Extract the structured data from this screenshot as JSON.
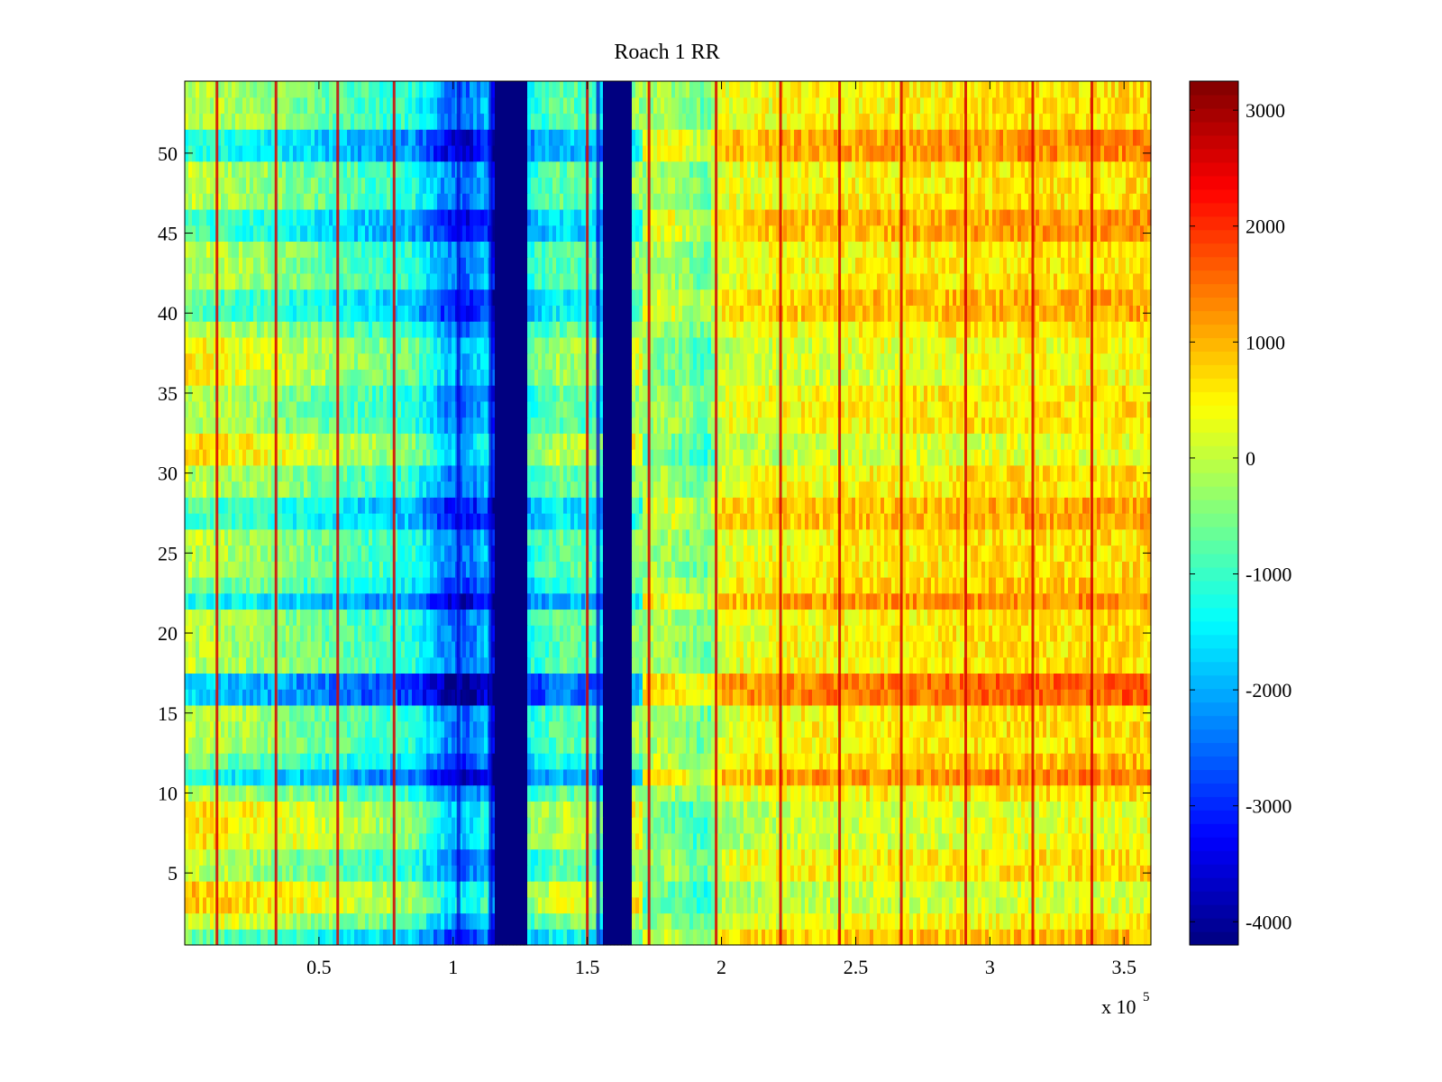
{
  "chart_data": {
    "type": "heatmap",
    "title": "Roach 1 RR",
    "xlabel": "",
    "ylabel": "",
    "x_multiplier_label": "x 10",
    "x_multiplier_exponent": "5",
    "xlim": [
      0,
      3.6
    ],
    "ylim": [
      0.5,
      54.5
    ],
    "x_ticks": [
      {
        "value": 0.5,
        "label": "0.5"
      },
      {
        "value": 1,
        "label": "1"
      },
      {
        "value": 1.5,
        "label": "1.5"
      },
      {
        "value": 2,
        "label": "2"
      },
      {
        "value": 2.5,
        "label": "2.5"
      },
      {
        "value": 3,
        "label": "3"
      },
      {
        "value": 3.5,
        "label": "3.5"
      }
    ],
    "y_ticks": [
      {
        "value": 5,
        "label": "5"
      },
      {
        "value": 10,
        "label": "10"
      },
      {
        "value": 15,
        "label": "15"
      },
      {
        "value": 20,
        "label": "20"
      },
      {
        "value": 25,
        "label": "25"
      },
      {
        "value": 30,
        "label": "30"
      },
      {
        "value": 35,
        "label": "35"
      },
      {
        "value": 40,
        "label": "40"
      },
      {
        "value": 45,
        "label": "45"
      },
      {
        "value": 50,
        "label": "50"
      }
    ],
    "colorbar": {
      "colormap": "jet",
      "range": [
        -4200,
        3250
      ],
      "ticks": [
        {
          "value": 3000,
          "label": "3000"
        },
        {
          "value": 2000,
          "label": "2000"
        },
        {
          "value": 1000,
          "label": "1000"
        },
        {
          "value": 0,
          "label": "0"
        },
        {
          "value": -1000,
          "label": "-1000"
        },
        {
          "value": -2000,
          "label": "-2000"
        },
        {
          "value": -3000,
          "label": "-3000"
        },
        {
          "value": -4000,
          "label": "-4000"
        }
      ]
    },
    "rows": 54,
    "x_profile": [
      {
        "x": 0.0,
        "v": 0
      },
      {
        "x": 0.3,
        "v": -300
      },
      {
        "x": 0.6,
        "v": -800
      },
      {
        "x": 0.85,
        "v": -1100
      },
      {
        "x": 0.98,
        "v": -2300
      },
      {
        "x": 1.05,
        "v": -2500
      },
      {
        "x": 1.13,
        "v": -1800
      },
      {
        "x": 1.16,
        "v": -4200
      },
      {
        "x": 1.27,
        "v": -4200
      },
      {
        "x": 1.28,
        "v": -1200
      },
      {
        "x": 1.4,
        "v": -700
      },
      {
        "x": 1.55,
        "v": -900
      },
      {
        "x": 1.56,
        "v": -4200
      },
      {
        "x": 1.66,
        "v": -4200
      },
      {
        "x": 1.67,
        "v": -300
      },
      {
        "x": 1.8,
        "v": -200
      },
      {
        "x": 1.95,
        "v": -700
      },
      {
        "x": 2.0,
        "v": 250
      },
      {
        "x": 2.3,
        "v": 450
      },
      {
        "x": 2.7,
        "v": 550
      },
      {
        "x": 3.1,
        "v": 650
      },
      {
        "x": 3.6,
        "v": 700
      }
    ],
    "band_modulation": [
      {
        "rows": [
          1,
          1
        ],
        "v": -600
      },
      {
        "rows": [
          2,
          2
        ],
        "v": 300
      },
      {
        "rows": [
          3,
          4
        ],
        "v": 900
      },
      {
        "rows": [
          7,
          9
        ],
        "v": 700
      },
      {
        "rows": [
          11,
          11
        ],
        "v": -1300
      },
      {
        "rows": [
          12,
          12
        ],
        "v": -500
      },
      {
        "rows": [
          16,
          17
        ],
        "v": -1700
      },
      {
        "rows": [
          22,
          22
        ],
        "v": -1200
      },
      {
        "rows": [
          23,
          23
        ],
        "v": -400
      },
      {
        "rows": [
          27,
          28
        ],
        "v": -800
      },
      {
        "rows": [
          31,
          32
        ],
        "v": 700
      },
      {
        "rows": [
          36,
          38
        ],
        "v": 500
      },
      {
        "rows": [
          40,
          41
        ],
        "v": -700
      },
      {
        "rows": [
          45,
          46
        ],
        "v": -900
      },
      {
        "rows": [
          50,
          51
        ],
        "v": -1100
      }
    ],
    "spike_lines_x": [
      0.12,
      0.34,
      0.57,
      0.78,
      1.5,
      1.73,
      1.98,
      2.22,
      2.44,
      2.67,
      2.91,
      3.16,
      3.38
    ],
    "spike_value": 2600,
    "dark_lines_x": [
      1.02,
      1.14,
      1.54
    ],
    "dark_value": -3600
  }
}
